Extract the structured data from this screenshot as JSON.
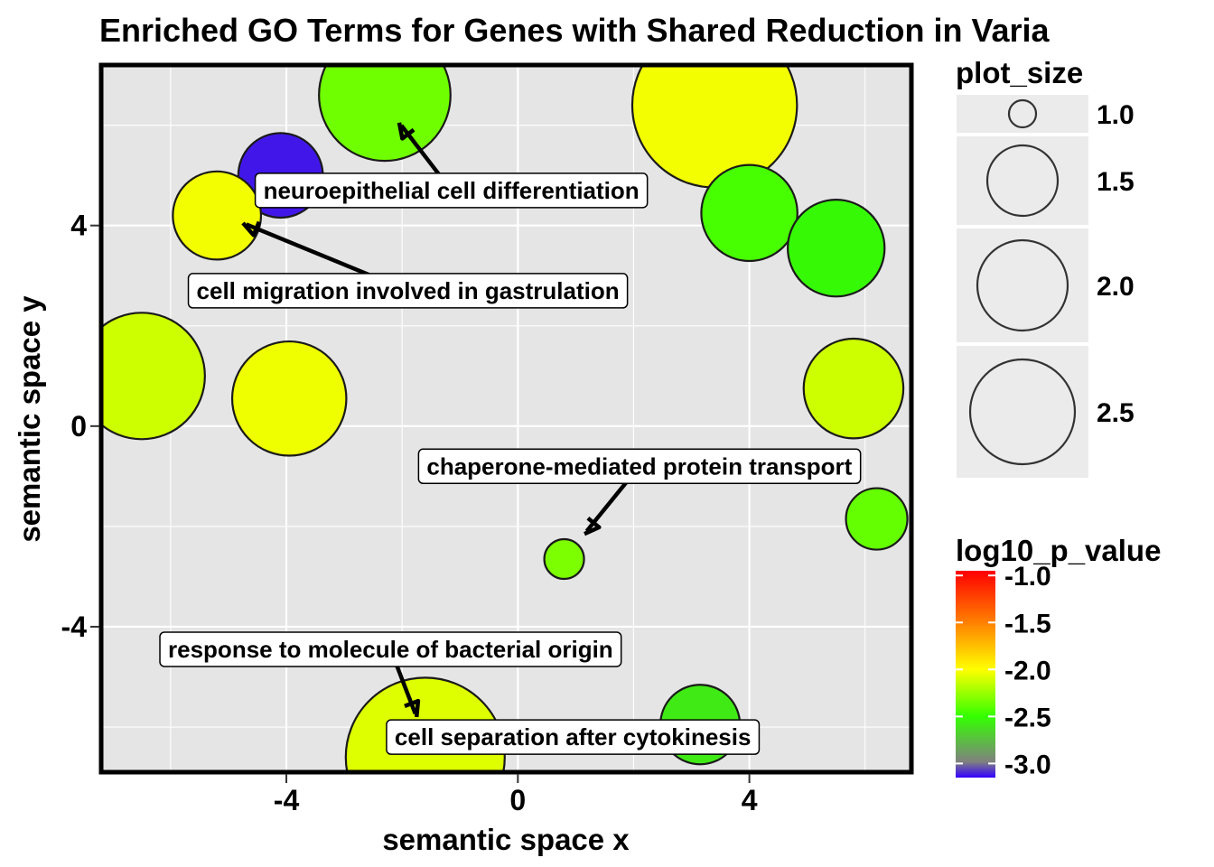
{
  "chart_data": {
    "type": "scatter",
    "title": "Enriched GO Terms for Genes with Shared Reduction in Varia",
    "xlabel": "semantic space x",
    "ylabel": "semantic space y",
    "xlim": [
      -7.2,
      6.8
    ],
    "ylim": [
      -6.9,
      7.2
    ],
    "x_ticks": [
      -4,
      0,
      4
    ],
    "y_ticks": [
      4,
      0,
      -4
    ],
    "x_tick_labels": [
      "-4",
      "0",
      "4"
    ],
    "y_tick_labels": [
      "4",
      "0",
      "-4"
    ],
    "grid": true,
    "points": [
      {
        "x": -2.3,
        "y": 6.6,
        "plot_size": 1.82,
        "log10_p_value": -2.35
      },
      {
        "x": 3.4,
        "y": 6.4,
        "plot_size": 2.28,
        "log10_p_value": -2.03
      },
      {
        "x": -4.1,
        "y": 5.0,
        "plot_size": 1.17,
        "log10_p_value": -3.12
      },
      {
        "x": -5.2,
        "y": 4.2,
        "plot_size": 1.22,
        "log10_p_value": -2.03
      },
      {
        "x": 4.0,
        "y": 4.25,
        "plot_size": 1.33,
        "log10_p_value": -2.45
      },
      {
        "x": 5.5,
        "y": 3.55,
        "plot_size": 1.34,
        "log10_p_value": -2.52
      },
      {
        "x": -6.5,
        "y": 1.0,
        "plot_size": 1.75,
        "log10_p_value": -2.12
      },
      {
        "x": -3.95,
        "y": 0.55,
        "plot_size": 1.58,
        "log10_p_value": -2.04
      },
      {
        "x": 5.8,
        "y": 0.75,
        "plot_size": 1.38,
        "log10_p_value": -2.12
      },
      {
        "x": 6.2,
        "y": -1.85,
        "plot_size": 0.85,
        "log10_p_value": -2.38
      },
      {
        "x": 0.8,
        "y": -2.65,
        "plot_size": 0.55,
        "log10_p_value": -2.32
      },
      {
        "x": 3.15,
        "y": -5.95,
        "plot_size": 1.1,
        "log10_p_value": -2.58
      },
      {
        "x": -1.6,
        "y": -6.6,
        "plot_size": 2.2,
        "log10_p_value": -2.08
      }
    ],
    "labels": [
      {
        "text": "neuroepithelial cell differentiation",
        "x": -1.15,
        "y": 4.7,
        "target_x": -2.05,
        "target_y": 6.05
      },
      {
        "text": "cell migration involved in gastrulation",
        "x": -1.9,
        "y": 2.7,
        "target_x": -4.75,
        "target_y": 4.05
      },
      {
        "text": "chaperone-mediated protein transport",
        "x": 2.1,
        "y": -0.8,
        "target_x": 1.15,
        "target_y": -2.15
      },
      {
        "text": "response to molecule of bacterial origin",
        "x": -2.2,
        "y": -4.45,
        "target_x": -1.75,
        "target_y": -5.8
      },
      {
        "text": "cell separation after cytokinesis",
        "x": 0.95,
        "y": -6.2,
        "target_x": null,
        "target_y": null
      }
    ],
    "legend_size": {
      "title": "plot_size",
      "breaks": [
        1.0,
        1.5,
        2.0,
        2.5
      ],
      "break_labels": [
        "1.0",
        "1.5",
        "2.0",
        "2.5"
      ],
      "placement": "right"
    },
    "legend_color": {
      "title": "log10_p_value",
      "breaks": [
        -1.0,
        -1.5,
        -2.0,
        -2.5,
        -3.0
      ],
      "break_labels": [
        "-1.0",
        "-1.5",
        "-2.0",
        "-2.5",
        "-3.0"
      ],
      "range": [
        -3.15,
        -0.95
      ],
      "placement": "right",
      "colors": [
        "#3300ff",
        "#808080",
        "#33ff00",
        "#ffff00",
        "#ff8000",
        "#ff0000"
      ]
    },
    "colors": {
      "panel_background": "#e5e5e5",
      "grid": "#ffffff",
      "border": "#000000",
      "point_stroke": "#1a1a1a"
    }
  }
}
